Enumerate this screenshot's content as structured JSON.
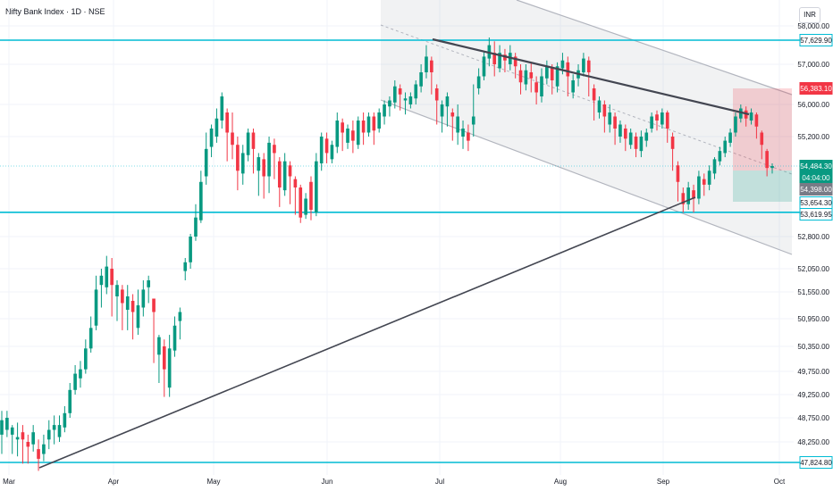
{
  "header": {
    "symbol_title": "Nifty Bank Index · 1D · NSE",
    "currency": "INR"
  },
  "colors": {
    "up": "#089981",
    "down": "#f23645",
    "level_line": "#00bcd4",
    "trend_line": "#434651",
    "channel": "#b2b5be",
    "grid": "#f0f3fa"
  },
  "chart_data": {
    "type": "candlestick",
    "timeframe": "1D",
    "x_labels": [
      "Mar",
      "Apr",
      "May",
      "Jun",
      "Jul",
      "Aug",
      "Sep",
      "Oct"
    ],
    "y_ticks": [
      "58,000.00",
      "57,000.00",
      "56,000.00",
      "55,200.00",
      "52,800.00",
      "52,050.00",
      "51,550.00",
      "50,950.00",
      "50,350.00",
      "49,750.00",
      "49,250.00",
      "48,750.00",
      "48,250.00"
    ],
    "ylim": [
      47700,
      58300
    ],
    "horizontal_levels": [
      57629.9,
      53654.3,
      47824.8
    ],
    "price_labels": [
      {
        "text": "57,629.90",
        "kind": "level"
      },
      {
        "text": "56,383.10",
        "kind": "target-red"
      },
      {
        "text": "54,484.30",
        "kind": "last-price"
      },
      {
        "text": "04:04:00",
        "kind": "countdown"
      },
      {
        "text": "54,398.00",
        "kind": "dark"
      },
      {
        "text": "53,654.30",
        "kind": "level"
      },
      {
        "text": "53,619.95",
        "kind": "level"
      },
      {
        "text": "47,824.80",
        "kind": "level"
      }
    ],
    "candles": [
      [
        48400,
        48700,
        48100,
        48000,
        48900
      ],
      [
        48500,
        48750,
        48400,
        48350,
        48900
      ],
      [
        48400,
        48550,
        48250,
        48000,
        48600
      ],
      [
        48300,
        48350,
        48000,
        47950,
        48650
      ],
      [
        48450,
        48300,
        47900,
        47800,
        48600
      ],
      [
        48250,
        48150,
        47850,
        47800,
        48400
      ],
      [
        48200,
        48450,
        48100,
        48050,
        48600
      ],
      [
        48100,
        47900,
        47700,
        47650,
        48300
      ],
      [
        48000,
        48200,
        47900,
        47850,
        48400
      ],
      [
        48300,
        48500,
        48150,
        48100,
        48700
      ],
      [
        48500,
        48600,
        48250,
        48200,
        48800
      ],
      [
        48350,
        48600,
        48300,
        48250,
        48800
      ],
      [
        48550,
        48850,
        48500,
        48450,
        49000
      ],
      [
        48850,
        49350,
        48800,
        48750,
        49500
      ],
      [
        49350,
        49700,
        49300,
        49250,
        49900
      ],
      [
        49600,
        49800,
        49450,
        49400,
        50000
      ],
      [
        49800,
        50300,
        49750,
        49700,
        50500
      ],
      [
        50300,
        50750,
        50250,
        50200,
        51000
      ],
      [
        50800,
        51600,
        50750,
        50700,
        51900
      ],
      [
        51700,
        51900,
        51300,
        51200,
        52050
      ],
      [
        51650,
        52100,
        51600,
        51500,
        52350
      ],
      [
        52050,
        51700,
        51100,
        51000,
        52300
      ],
      [
        51450,
        51700,
        51000,
        50900,
        51800
      ],
      [
        51600,
        51300,
        50800,
        50700,
        51700
      ],
      [
        51150,
        51450,
        50750,
        50700,
        51700
      ],
      [
        51350,
        51100,
        50600,
        50500,
        51500
      ],
      [
        50750,
        51250,
        50700,
        50600,
        51600
      ],
      [
        51200,
        51600,
        51100,
        51000,
        51800
      ],
      [
        51650,
        51800,
        51350,
        51300,
        51900
      ],
      [
        51400,
        51100,
        50300,
        49950,
        51250
      ],
      [
        50150,
        50550,
        49950,
        49500,
        50600
      ],
      [
        50350,
        49800,
        49300,
        49200,
        50500
      ],
      [
        49400,
        50300,
        49300,
        49200,
        50600
      ],
      [
        50250,
        50800,
        50200,
        50100,
        51000
      ],
      [
        50900,
        51100,
        50600,
        50500,
        51200
      ],
      [
        52000,
        52200,
        51900,
        51800,
        52300
      ],
      [
        52200,
        52800,
        52150,
        52050,
        52900
      ],
      [
        52800,
        53500,
        52750,
        52700,
        53800
      ],
      [
        53400,
        54200,
        53350,
        53300,
        54400
      ],
      [
        54300,
        54900,
        54250,
        54150,
        55300
      ],
      [
        54950,
        55400,
        54800,
        54700,
        55500
      ],
      [
        55200,
        55650,
        55150,
        55050,
        55900
      ],
      [
        55600,
        56200,
        55550,
        55400,
        56300
      ],
      [
        55800,
        55300,
        54950,
        54600,
        55900
      ],
      [
        55300,
        55000,
        54750,
        54650,
        55800
      ],
      [
        55000,
        54400,
        54100,
        54050,
        55200
      ],
      [
        54350,
        54800,
        54200,
        54150,
        55000
      ],
      [
        54750,
        55300,
        54700,
        54600,
        55400
      ],
      [
        55300,
        54900,
        54450,
        54350,
        55400
      ],
      [
        54400,
        54700,
        54000,
        53950,
        54800
      ],
      [
        54650,
        54300,
        53950,
        53900,
        54800
      ],
      [
        54300,
        55050,
        54250,
        54000,
        55200
      ],
      [
        55000,
        54800,
        54300,
        54250,
        55150
      ],
      [
        54600,
        54100,
        53850,
        53750,
        54700
      ],
      [
        54050,
        54600,
        54000,
        53950,
        54800
      ],
      [
        54500,
        54300,
        53850,
        53800,
        54600
      ],
      [
        54250,
        54100,
        53700,
        53600,
        54300
      ],
      [
        54100,
        53500,
        53350,
        53300,
        54150
      ],
      [
        53600,
        53900,
        53500,
        53450,
        54000
      ],
      [
        54200,
        53700,
        53450,
        53400,
        54300
      ],
      [
        53650,
        54600,
        53600,
        53550,
        54800
      ],
      [
        54550,
        55200,
        54500,
        54400,
        55300
      ],
      [
        55150,
        54800,
        54600,
        54550,
        55300
      ],
      [
        54650,
        55000,
        54600,
        54550,
        55100
      ],
      [
        54950,
        55600,
        54900,
        54800,
        55800
      ],
      [
        55550,
        55300,
        54950,
        54850,
        55650
      ],
      [
        55050,
        55400,
        55000,
        54900,
        55500
      ],
      [
        55350,
        55100,
        54900,
        54800,
        55600
      ],
      [
        55000,
        55600,
        54950,
        54900,
        55700
      ],
      [
        55600,
        55300,
        55100,
        55000,
        55800
      ],
      [
        55300,
        55700,
        55250,
        55200,
        55800
      ],
      [
        55700,
        55350,
        55050,
        55000,
        55800
      ],
      [
        55400,
        55800,
        55350,
        55300,
        55900
      ],
      [
        55700,
        56000,
        55600,
        55500,
        56100
      ],
      [
        55950,
        56100,
        55800,
        55700,
        56200
      ],
      [
        56050,
        56450,
        56000,
        55900,
        56600
      ],
      [
        56400,
        56250,
        55950,
        55850,
        56500
      ],
      [
        56100,
        56150,
        55850,
        55750,
        56300
      ],
      [
        56000,
        56200,
        55950,
        55900,
        56300
      ],
      [
        56150,
        56500,
        56100,
        56000,
        56600
      ],
      [
        56450,
        56800,
        56400,
        56300,
        57000
      ],
      [
        56800,
        57200,
        56700,
        56650,
        57500
      ],
      [
        57100,
        56800,
        56300,
        56250,
        57200
      ],
      [
        56400,
        56100,
        55600,
        55500,
        56500
      ],
      [
        55700,
        56000,
        55400,
        55300,
        56100
      ],
      [
        55950,
        56200,
        55500,
        55450,
        56300
      ],
      [
        55800,
        55700,
        55200,
        55100,
        55900
      ],
      [
        55300,
        55700,
        55100,
        55000,
        56000
      ],
      [
        55200,
        55400,
        54950,
        54900,
        55600
      ],
      [
        55300,
        55100,
        54900,
        54850,
        55500
      ],
      [
        55500,
        55700,
        55300,
        55200,
        56500
      ],
      [
        56400,
        56700,
        56300,
        56250,
        56900
      ],
      [
        56700,
        57200,
        56650,
        56600,
        57350
      ],
      [
        57150,
        57500,
        57000,
        56950,
        57700
      ],
      [
        57300,
        57000,
        56800,
        56700,
        57600
      ],
      [
        56900,
        57300,
        56850,
        56800,
        57500
      ],
      [
        57250,
        57100,
        56900,
        56800,
        57400
      ],
      [
        57000,
        57300,
        56950,
        56850,
        57500
      ],
      [
        57200,
        56950,
        56700,
        56650,
        57300
      ],
      [
        56850,
        56550,
        56300,
        56250,
        57000
      ],
      [
        56500,
        56850,
        56450,
        56350,
        57000
      ],
      [
        56800,
        56650,
        56400,
        56300,
        57050
      ],
      [
        56550,
        56300,
        56100,
        56000,
        56700
      ],
      [
        56200,
        56700,
        56150,
        56050,
        56900
      ],
      [
        56650,
        56950,
        56600,
        56500,
        57100
      ],
      [
        56900,
        56600,
        56300,
        56250,
        57000
      ],
      [
        56450,
        56950,
        56400,
        56300,
        57050
      ],
      [
        56900,
        57100,
        56850,
        56750,
        57300
      ],
      [
        57050,
        56700,
        56300,
        56200,
        57200
      ],
      [
        56300,
        56600,
        56250,
        56150,
        56750
      ],
      [
        56650,
        56850,
        56550,
        56450,
        57000
      ],
      [
        56800,
        57150,
        56750,
        56700,
        57300
      ],
      [
        57100,
        56800,
        56300,
        56200,
        57200
      ],
      [
        56400,
        56100,
        55700,
        55600,
        56500
      ],
      [
        55800,
        56100,
        55700,
        55650,
        56200
      ],
      [
        56000,
        55700,
        55400,
        55300,
        56100
      ],
      [
        55500,
        55800,
        55400,
        55300,
        56000
      ],
      [
        55700,
        55400,
        55050,
        55000,
        55800
      ],
      [
        55200,
        55500,
        55100,
        55050,
        55600
      ],
      [
        55400,
        55150,
        54950,
        54850,
        55500
      ],
      [
        55000,
        55300,
        54950,
        54900,
        55400
      ],
      [
        55200,
        54900,
        54750,
        54700,
        55300
      ],
      [
        54850,
        55200,
        54800,
        54700,
        55350
      ],
      [
        55100,
        55300,
        55000,
        54950,
        55400
      ],
      [
        55400,
        55700,
        55350,
        55300,
        55800
      ],
      [
        55750,
        55600,
        55400,
        55350,
        55850
      ],
      [
        55500,
        55800,
        55450,
        55400,
        55900
      ],
      [
        55800,
        55400,
        55100,
        55050,
        55850
      ],
      [
        55200,
        54900,
        54450,
        54400,
        55300
      ],
      [
        54500,
        54200,
        53900,
        53850,
        54600
      ],
      [
        54000,
        53800,
        53700,
        53650,
        54100
      ],
      [
        53800,
        54100,
        53750,
        53700,
        54200
      ],
      [
        54050,
        53900,
        53700,
        53650,
        54150
      ],
      [
        53900,
        54300,
        53850,
        53800,
        54400
      ],
      [
        54250,
        54150,
        54000,
        53950,
        54350
      ],
      [
        54150,
        54400,
        54100,
        54050,
        54500
      ],
      [
        54350,
        54650,
        54300,
        54250,
        54700
      ],
      [
        54600,
        54850,
        54550,
        54500,
        54950
      ],
      [
        54800,
        55100,
        54750,
        54700,
        55200
      ],
      [
        55050,
        55300,
        55000,
        54950,
        55400
      ],
      [
        55300,
        55700,
        55250,
        55200,
        55800
      ],
      [
        55650,
        55900,
        55600,
        55550,
        56000
      ],
      [
        55850,
        55650,
        55500,
        55450,
        55950
      ],
      [
        55600,
        55800,
        55550,
        55500,
        55900
      ],
      [
        55750,
        55450,
        55200,
        55150,
        55800
      ],
      [
        55300,
        55000,
        54700,
        54650,
        55350
      ],
      [
        54850,
        54450,
        54350,
        54300,
        54900
      ],
      [
        54450,
        54484.3,
        54398,
        54350,
        54550
      ]
    ]
  }
}
